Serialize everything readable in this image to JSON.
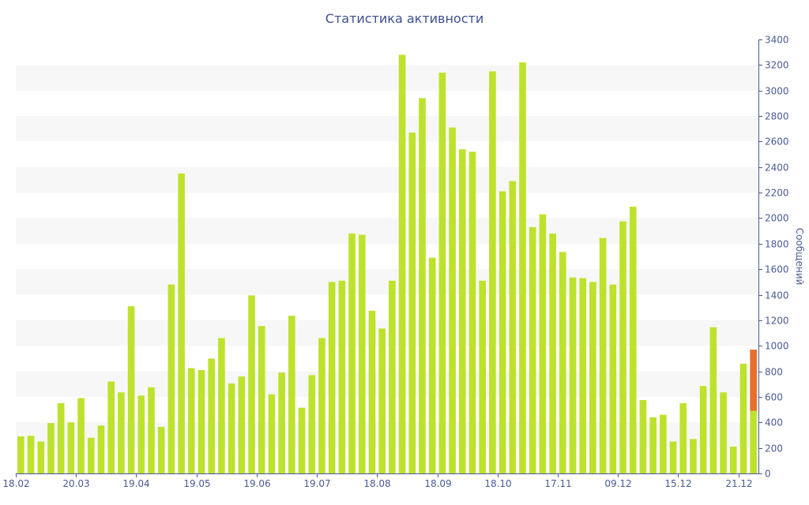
{
  "chart_data": {
    "type": "bar",
    "title": "Статистика активности",
    "ylabel": "Сообщений",
    "ylim": [
      0,
      3400
    ],
    "y_ticks": [
      0,
      200,
      400,
      600,
      800,
      1000,
      1200,
      1400,
      1600,
      1800,
      2000,
      2200,
      2400,
      2600,
      2800,
      3000,
      3200,
      3400
    ],
    "y_axis_position": "right",
    "x_tick_labels": [
      {
        "label": "18.02",
        "index": 0
      },
      {
        "label": "20.03",
        "index": 6
      },
      {
        "label": "19.04",
        "index": 12
      },
      {
        "label": "19.05",
        "index": 18
      },
      {
        "label": "19.06",
        "index": 24
      },
      {
        "label": "19.07",
        "index": 30
      },
      {
        "label": "18.08",
        "index": 36
      },
      {
        "label": "18.09",
        "index": 42
      },
      {
        "label": "18.10",
        "index": 48
      },
      {
        "label": "17.11",
        "index": 54
      },
      {
        "label": "09.12",
        "index": 60
      },
      {
        "label": "15.12",
        "index": 66
      },
      {
        "label": "21.12",
        "index": 72
      }
    ],
    "series": [
      {
        "color": "#bde22c",
        "values": [
          290,
          295,
          250,
          395,
          550,
          400,
          590,
          280,
          375,
          720,
          635,
          1310,
          610,
          675,
          365,
          1480,
          2350,
          825,
          810,
          900,
          1060,
          705,
          760,
          1395,
          1155,
          620,
          790,
          1235,
          515,
          770,
          1060,
          1500,
          1510,
          1880,
          1870,
          1275,
          1135,
          1510,
          3280,
          2670,
          2940,
          1690,
          3140,
          2710,
          2540,
          2520,
          1510,
          3150,
          2210,
          2290,
          3220,
          1930,
          2030,
          1880,
          1735,
          1535,
          1530,
          1500,
          1845,
          1480,
          1975,
          2090,
          575,
          440,
          460,
          250,
          550,
          270,
          685,
          1145,
          635,
          210,
          860,
          490
        ]
      },
      {
        "color": "#e6702b",
        "values": [
          0,
          0,
          0,
          0,
          0,
          0,
          0,
          0,
          0,
          0,
          0,
          0,
          0,
          0,
          0,
          0,
          0,
          0,
          0,
          0,
          0,
          0,
          0,
          0,
          0,
          0,
          0,
          0,
          0,
          0,
          0,
          0,
          0,
          0,
          0,
          0,
          0,
          0,
          0,
          0,
          0,
          0,
          0,
          0,
          0,
          0,
          0,
          0,
          0,
          0,
          0,
          0,
          0,
          0,
          0,
          0,
          0,
          0,
          0,
          0,
          0,
          0,
          0,
          0,
          0,
          0,
          0,
          0,
          0,
          0,
          0,
          0,
          0,
          480
        ]
      }
    ],
    "stacked": true,
    "grid": "alternating horizontal bands",
    "colors": {
      "band": "#f7f7f7",
      "axis": "#4a5a96",
      "text": "#4a5a96",
      "title": "#3f4f8f"
    }
  }
}
